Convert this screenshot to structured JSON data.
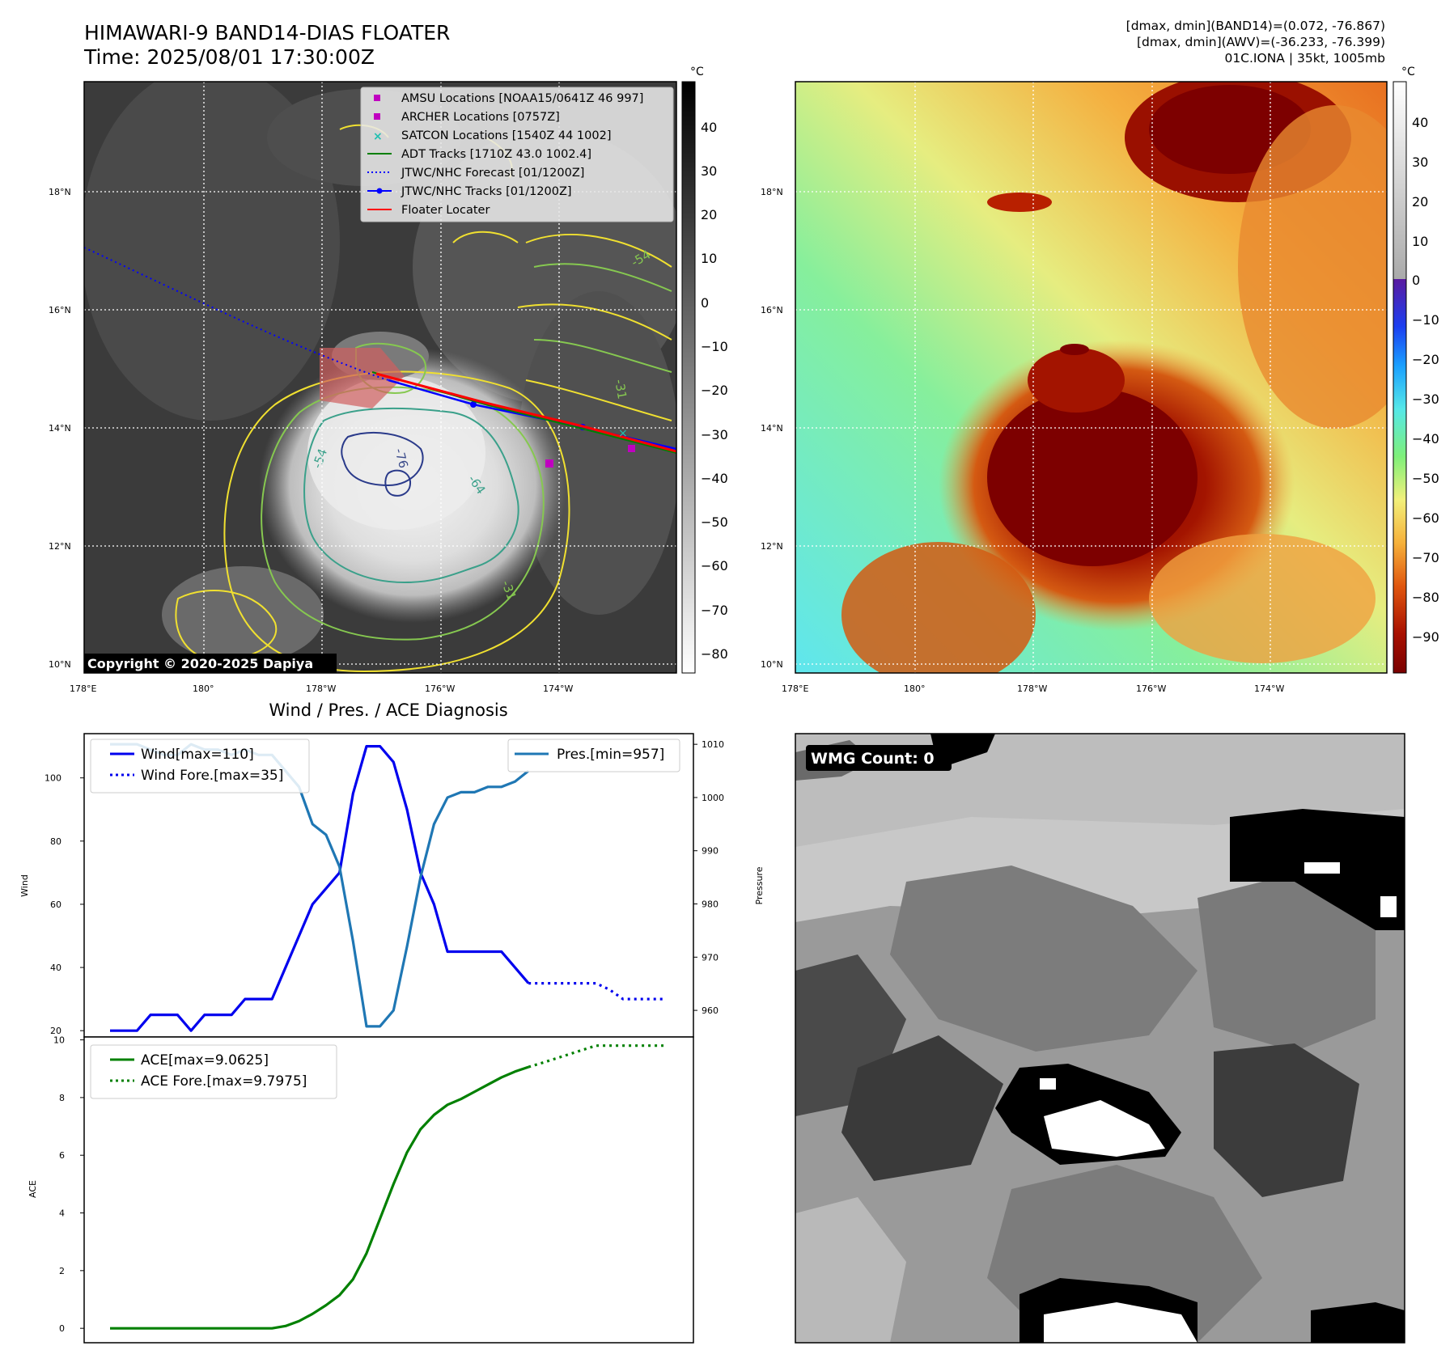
{
  "header": {
    "title_line1": "HIMAWARI-9 BAND14-DIAS FLOATER",
    "title_line2": "Time: 2025/08/01 17:30:00Z",
    "stats_line1": "[dmax, dmin](BAND14)=(0.072, -76.867)",
    "stats_line2": "[dmax, dmin](AWV)=(-36.233, -76.399)",
    "stats_line3": "01C.IONA | 35kt, 1005mb"
  },
  "map_ir": {
    "lat_labels": [
      "18°N",
      "16°N",
      "14°N",
      "12°N",
      "10°N"
    ],
    "lon_labels": [
      "178°E",
      "180°",
      "178°W",
      "176°W",
      "174°W"
    ],
    "copyright": "Copyright © 2020-2025 Dapiya",
    "contour_labels": [
      "-76",
      "-64",
      "-54",
      "-31",
      "-54",
      "-31"
    ],
    "legend": [
      {
        "label": "AMSU Locations [NOAA15/0641Z 46 997]",
        "color": "#c000c0",
        "marker": "square"
      },
      {
        "label": "ARCHER Locations [0757Z]",
        "color": "#c000c0",
        "marker": "square"
      },
      {
        "label": "SATCON Locations [1540Z 44 1002]",
        "color": "#20c0b0",
        "marker": "x"
      },
      {
        "label": "ADT Tracks [1710Z 43.0 1002.4]",
        "color": "#008000",
        "marker": "line"
      },
      {
        "label": "JTWC/NHC Forecast [01/1200Z]",
        "color": "#0000ff",
        "marker": "dotted"
      },
      {
        "label": "JTWC/NHC Tracks [01/1200Z]",
        "color": "#0000ff",
        "marker": "line-dot"
      },
      {
        "label": "Floater Locater",
        "color": "#ff0000",
        "marker": "line"
      }
    ],
    "colorbar": {
      "unit": "°C",
      "ticks": [
        "40",
        "30",
        "20",
        "10",
        "0",
        "−10",
        "−20",
        "−30",
        "−40",
        "−50",
        "−60",
        "−70",
        "−80"
      ]
    }
  },
  "map_awv": {
    "lat_labels": [
      "18°N",
      "16°N",
      "14°N",
      "12°N",
      "10°N"
    ],
    "lon_labels": [
      "178°E",
      "180°",
      "178°W",
      "176°W",
      "174°W"
    ],
    "colorbar": {
      "unit": "°C",
      "ticks": [
        "40",
        "30",
        "20",
        "10",
        "0",
        "−10",
        "−20",
        "−30",
        "−40",
        "−50",
        "−60",
        "−70",
        "−80",
        "−90"
      ]
    }
  },
  "chart_data": [
    {
      "type": "line",
      "title": "Wind / Pres. / ACE Diagnosis",
      "ylabel": "Wind",
      "ylabel_right": "Pressure",
      "ylim": [
        18,
        114
      ],
      "ylim_right": [
        955,
        1012
      ],
      "yticks": [
        "20",
        "40",
        "60",
        "80",
        "100"
      ],
      "yticks_right": [
        "960",
        "970",
        "980",
        "990",
        "1000",
        "1010"
      ],
      "x": [
        0,
        1,
        2,
        3,
        4,
        5,
        6,
        7,
        8,
        9,
        10,
        11,
        12,
        13,
        14,
        15,
        16,
        17,
        18,
        19,
        20,
        21,
        22,
        23,
        24,
        25,
        26,
        27,
        28,
        29,
        30,
        31,
        32,
        33,
        34,
        35
      ],
      "series": [
        {
          "name": "Wind[max=110]",
          "color": "#0000ee",
          "style": "solid",
          "x": [
            0,
            1,
            2,
            3,
            4,
            5,
            6,
            7,
            8,
            9,
            10,
            11,
            12,
            13,
            14,
            15,
            16,
            17,
            18,
            19,
            20,
            21,
            22,
            23,
            24,
            25,
            26,
            27,
            28,
            29,
            30,
            31
          ],
          "values": [
            20,
            20,
            20,
            25,
            25,
            25,
            20,
            25,
            25,
            25,
            30,
            30,
            30,
            40,
            50,
            60,
            65,
            70,
            95,
            110,
            110,
            105,
            90,
            70,
            60,
            45,
            45,
            45,
            45,
            45,
            40,
            35
          ]
        },
        {
          "name": "Wind Fore.[max=35]",
          "color": "#0000ee",
          "style": "dotted",
          "x": [
            31,
            32,
            33,
            34,
            35,
            36,
            37,
            38,
            39,
            40,
            41
          ],
          "values": [
            35,
            35,
            35,
            35,
            35,
            35,
            33,
            30,
            30,
            30,
            30
          ]
        },
        {
          "name": "Pres.[min=957]",
          "color": "#1f77b4",
          "style": "solid",
          "axis": "right",
          "x": [
            0,
            1,
            2,
            3,
            4,
            5,
            6,
            7,
            8,
            9,
            10,
            11,
            12,
            13,
            14,
            15,
            16,
            17,
            18,
            19,
            20,
            21,
            22,
            23,
            24,
            25,
            26,
            27,
            28,
            29,
            30,
            31
          ],
          "values": [
            1010,
            1010,
            1010,
            1009,
            1008,
            1008,
            1010,
            1009,
            1009,
            1008,
            1009,
            1008,
            1008,
            1005,
            1002,
            995,
            993,
            987,
            973,
            957,
            957,
            960,
            972,
            985,
            995,
            1000,
            1001,
            1001,
            1002,
            1002,
            1003,
            1005
          ]
        }
      ]
    },
    {
      "type": "line",
      "ylabel": "ACE",
      "ylim": [
        -0.5,
        10.1
      ],
      "yticks": [
        "0",
        "2",
        "4",
        "6",
        "8",
        "10"
      ],
      "series": [
        {
          "name": "ACE[max=9.0625]",
          "color": "#008000",
          "style": "solid",
          "x": [
            0,
            1,
            2,
            3,
            4,
            5,
            6,
            7,
            8,
            9,
            10,
            11,
            12,
            13,
            14,
            15,
            16,
            17,
            18,
            19,
            20,
            21,
            22,
            23,
            24,
            25,
            26,
            27,
            28,
            29,
            30,
            31
          ],
          "values": [
            0,
            0,
            0,
            0,
            0,
            0,
            0,
            0,
            0,
            0,
            0,
            0,
            0,
            0.08,
            0.25,
            0.5,
            0.8,
            1.15,
            1.7,
            2.6,
            3.8,
            5.0,
            6.1,
            6.9,
            7.4,
            7.75,
            7.95,
            8.2,
            8.45,
            8.7,
            8.9,
            9.06
          ]
        },
        {
          "name": "ACE Fore.[max=9.7975]",
          "color": "#008000",
          "style": "dotted",
          "x": [
            31,
            32,
            33,
            34,
            35,
            36,
            37,
            38,
            39,
            40,
            41
          ],
          "values": [
            9.06,
            9.2,
            9.35,
            9.5,
            9.65,
            9.8,
            9.8,
            9.8,
            9.8,
            9.8,
            9.8
          ]
        }
      ]
    }
  ],
  "awv_panel": {
    "label": "WMG Count: 0"
  }
}
